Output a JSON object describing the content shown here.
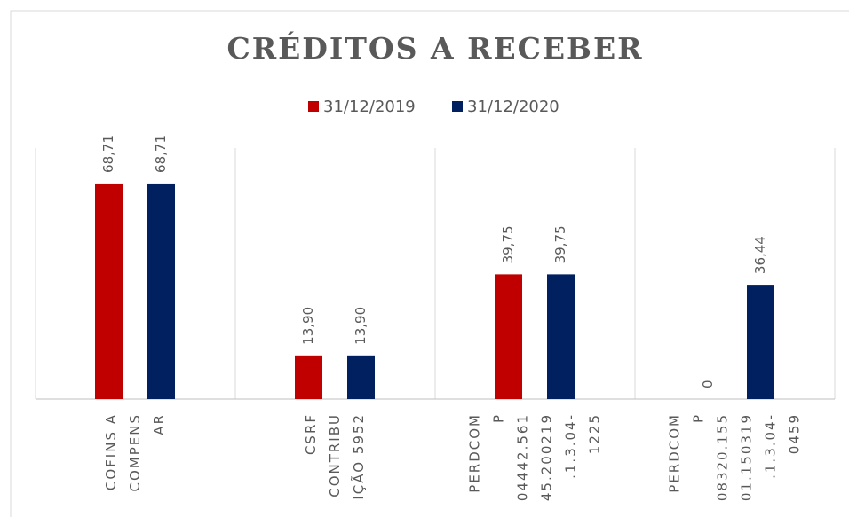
{
  "chart_data": {
    "type": "bar",
    "title": "CRÉDITOS A RECEBER",
    "categories": [
      [
        "COFINS A",
        "COMPENS",
        "AR"
      ],
      [
        "CSRF",
        "CONTRIBU",
        "IÇÃO 5952"
      ],
      [
        "PERDCOM",
        "P",
        "04442.561",
        "45.200219",
        ".1.3.04-",
        "1225"
      ],
      [
        "PERDCOM",
        "P",
        "08320.155",
        "01.150319",
        ".1.3.04-",
        "0459"
      ]
    ],
    "series": [
      {
        "name": "31/12/2019",
        "color": "#c00000",
        "values": [
          68.71,
          13.9,
          39.75,
          0
        ],
        "value_labels": [
          "68,71",
          "13,90",
          "39,75",
          "0"
        ]
      },
      {
        "name": "31/12/2020",
        "color": "#002060",
        "values": [
          68.71,
          13.9,
          39.75,
          36.44
        ],
        "value_labels": [
          "68,71",
          "13,90",
          "39,75",
          "36,44"
        ]
      }
    ],
    "ylim": [
      0,
      80
    ],
    "legend": "top"
  }
}
